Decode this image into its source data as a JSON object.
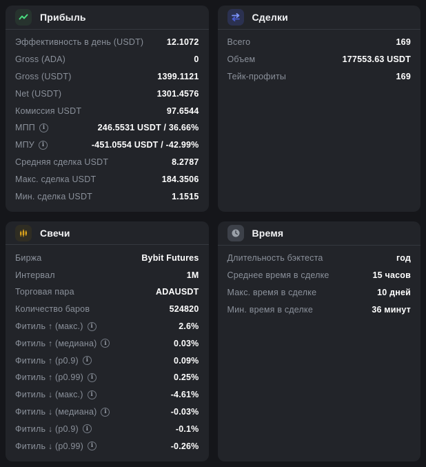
{
  "colors": {
    "page-bg": "#15161a",
    "panel-bg": "#222429",
    "accent-green": "#4ade80",
    "accent-blue": "#7c93f7",
    "accent-gold": "#d9a21c",
    "clock-gray": "#9aa0a8"
  },
  "panels": [
    {
      "id": "profit",
      "title": "Прибыль",
      "icon": "trend-up-icon",
      "rows": [
        {
          "label": "Эффективность в день (USDT)",
          "value": "12.1072",
          "info": false
        },
        {
          "label": "Gross (ADA)",
          "value": "0",
          "info": false
        },
        {
          "label": "Gross (USDT)",
          "value": "1399.1121",
          "info": false
        },
        {
          "label": "Net (USDT)",
          "value": "1301.4576",
          "info": false
        },
        {
          "label": "Комиссия USDT",
          "value": "97.6544",
          "info": false
        },
        {
          "label": "МПП",
          "value": "246.5531 USDT / 36.66%",
          "info": true
        },
        {
          "label": "МПУ",
          "value": "-451.0554 USDT / -42.99%",
          "info": true
        },
        {
          "label": "Средняя сделка USDT",
          "value": "8.2787",
          "info": false
        },
        {
          "label": "Макс. сделка USDT",
          "value": "184.3506",
          "info": false
        },
        {
          "label": "Мин. сделка USDT",
          "value": "1.1515",
          "info": false
        }
      ]
    },
    {
      "id": "trades",
      "title": "Сделки",
      "icon": "swap-arrows-icon",
      "rows": [
        {
          "label": "Всего",
          "value": "169",
          "info": false
        },
        {
          "label": "Объем",
          "value": "177553.63 USDT",
          "info": false
        },
        {
          "label": "Тейк-профиты",
          "value": "169",
          "info": false
        }
      ]
    },
    {
      "id": "candles",
      "title": "Свечи",
      "icon": "candlestick-icon",
      "rows": [
        {
          "label": "Биржа",
          "value": "Bybit Futures",
          "info": false
        },
        {
          "label": "Интервал",
          "value": "1M",
          "info": false
        },
        {
          "label": "Торговая пара",
          "value": "ADAUSDT",
          "info": false
        },
        {
          "label": "Количество баров",
          "value": "524820",
          "info": false
        },
        {
          "label": "Фитиль ↑ (макс.)",
          "value": "2.6%",
          "info": true
        },
        {
          "label": "Фитиль ↑ (медиана)",
          "value": "0.03%",
          "info": true
        },
        {
          "label": "Фитиль ↑ (p0.9)",
          "value": "0.09%",
          "info": true
        },
        {
          "label": "Фитиль ↑ (p0.99)",
          "value": "0.25%",
          "info": true
        },
        {
          "label": "Фитиль ↓ (макс.)",
          "value": "-4.61%",
          "info": true
        },
        {
          "label": "Фитиль ↓ (медиана)",
          "value": "-0.03%",
          "info": true
        },
        {
          "label": "Фитиль ↓ (p0.9)",
          "value": "-0.1%",
          "info": true
        },
        {
          "label": "Фитиль ↓ (p0.99)",
          "value": "-0.26%",
          "info": true
        }
      ]
    },
    {
      "id": "time",
      "title": "Время",
      "icon": "clock-icon",
      "rows": [
        {
          "label": "Длительность бэктеста",
          "value": "год",
          "info": false
        },
        {
          "label": "Среднее время в сделке",
          "value": "15 часов",
          "info": false
        },
        {
          "label": "Макс. время в сделке",
          "value": "10 дней",
          "info": false
        },
        {
          "label": "Мин. время в сделке",
          "value": "36 минут",
          "info": false
        }
      ]
    }
  ]
}
